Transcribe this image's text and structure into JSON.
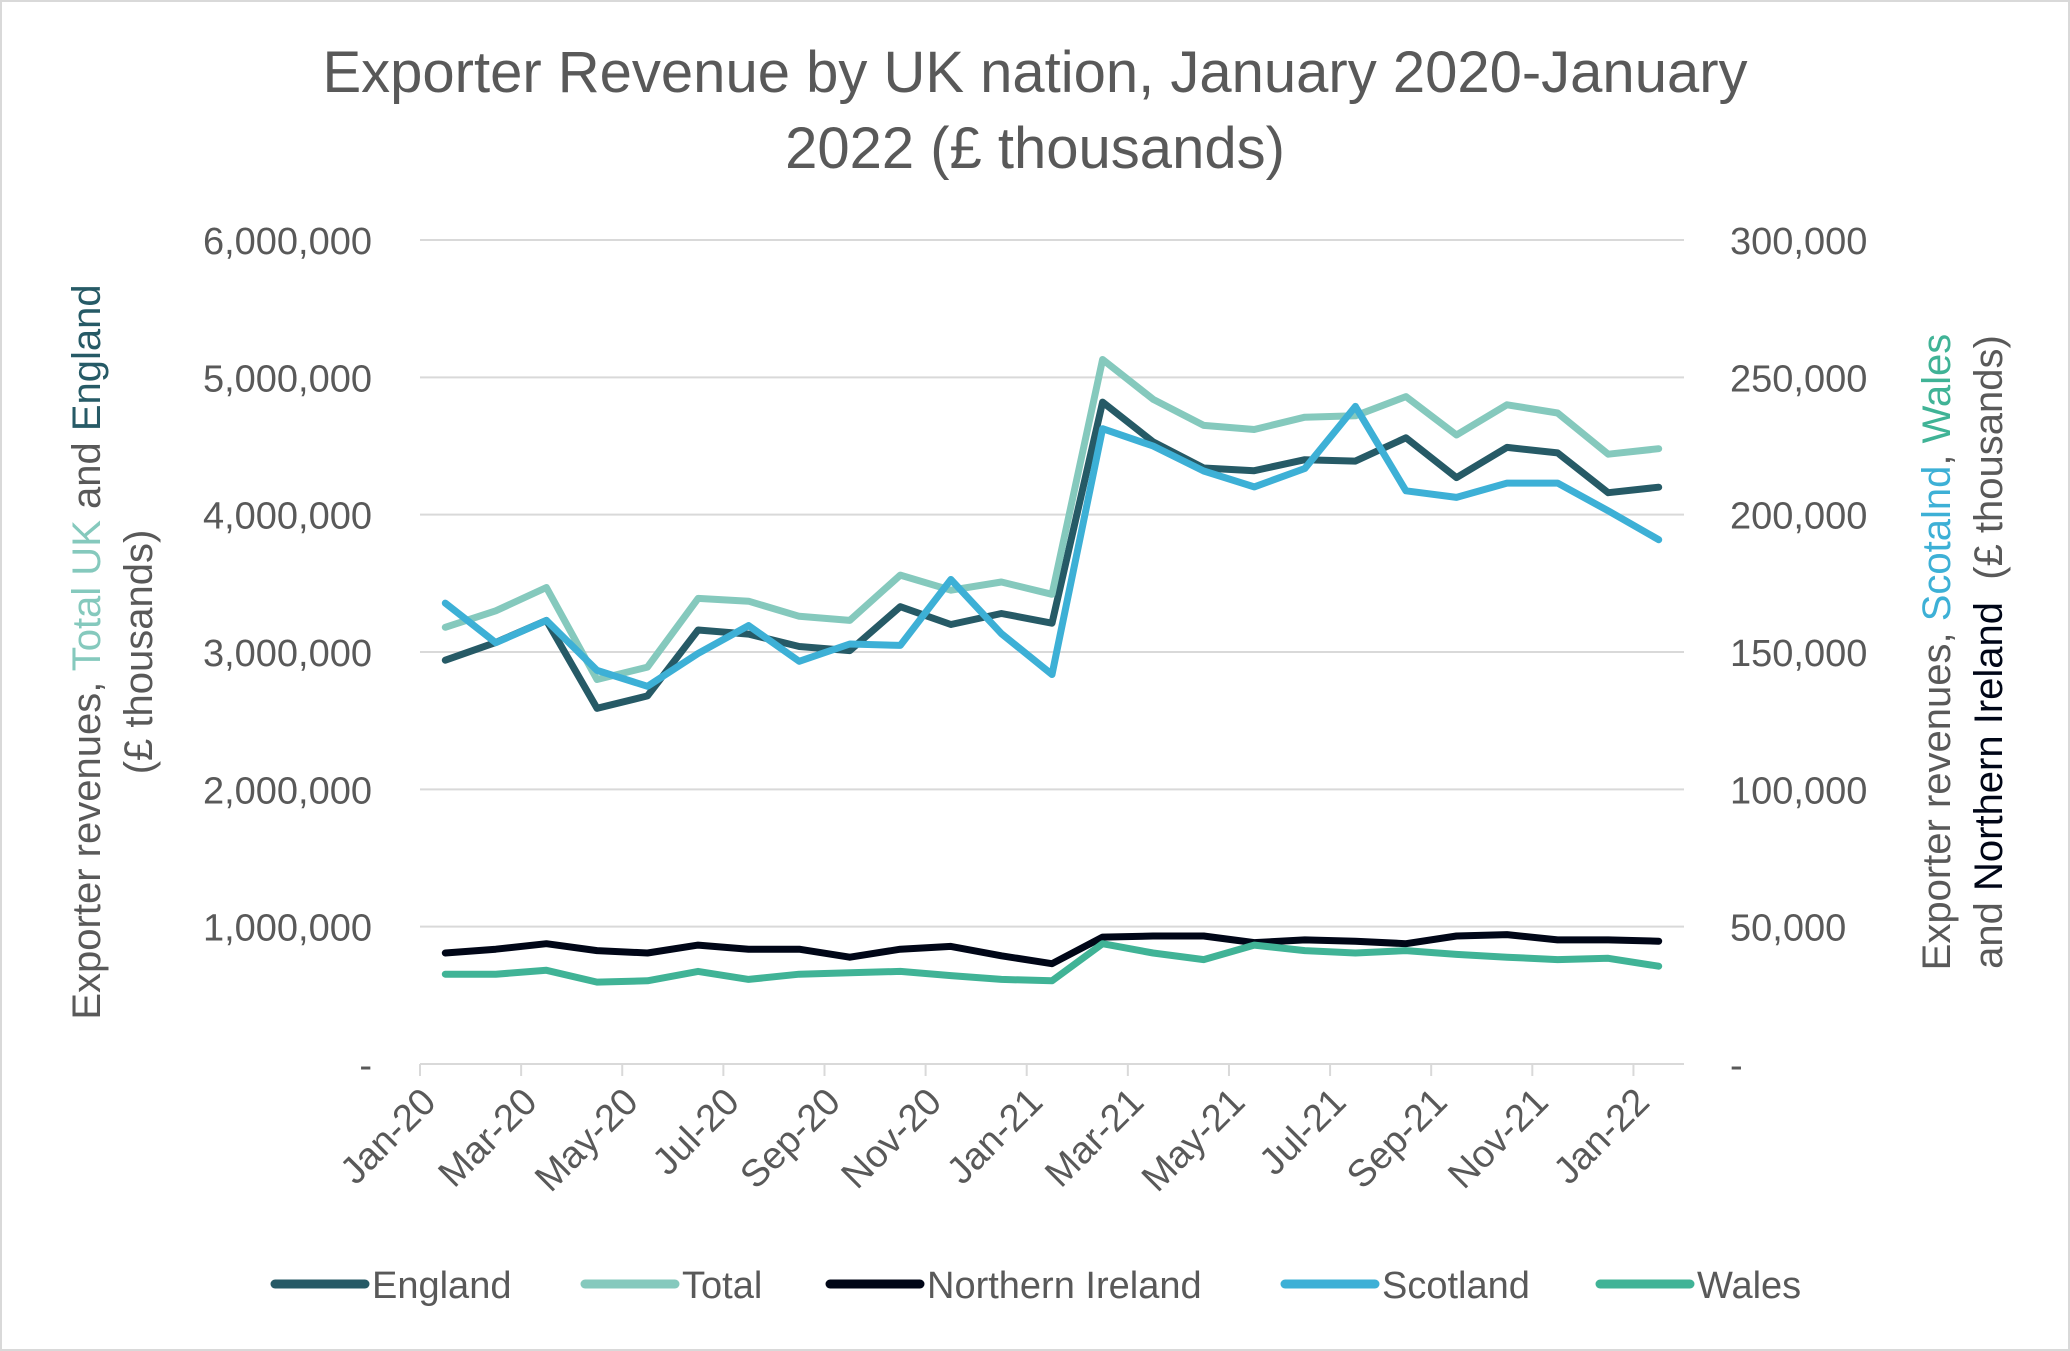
{
  "chart_data": {
    "type": "line",
    "title": "Exporter Revenue by UK nation, January 2020-January 2022 (£ thousands)",
    "title_lines": [
      "Exporter Revenue by UK nation, January 2020-January",
      "2022 (£ thousands)"
    ],
    "ylabel": {
      "prefix": "Exporter revenues, ",
      "total": "Total UK",
      "and": " and ",
      "england": "England",
      "units": "(£ thousands)"
    },
    "y2label": {
      "prefix": "Exporter revenues, ",
      "scotland": "Scotalnd",
      "comma": ", ",
      "wales": "Wales",
      "and": "and ",
      "ni": "Northern Ireland",
      "units": "  (£ thousands)"
    },
    "ylim": [
      0,
      6000000
    ],
    "y2lim": [
      0,
      300000
    ],
    "yticks": [
      "-",
      "1,000,000",
      "2,000,000",
      "3,000,000",
      "4,000,000",
      "5,000,000",
      "6,000,000"
    ],
    "y2ticks": [
      "-",
      "50,000",
      "100,000",
      "150,000",
      "200,000",
      "250,000",
      "300,000"
    ],
    "grid": true,
    "legend_position": "bottom",
    "categories": [
      "Jan-20",
      "Feb-20",
      "Mar-20",
      "Apr-20",
      "May-20",
      "Jun-20",
      "Jul-20",
      "Aug-20",
      "Sep-20",
      "Oct-20",
      "Nov-20",
      "Dec-20",
      "Jan-21",
      "Feb-21",
      "Mar-21",
      "Apr-21",
      "May-21",
      "Jun-21",
      "Jul-21",
      "Aug-21",
      "Sep-21",
      "Oct-21",
      "Nov-21",
      "Dec-21",
      "Jan-22"
    ],
    "xtick_labels": [
      "Jan-20",
      "Mar-20",
      "May-20",
      "Jul-20",
      "Sep-20",
      "Nov-20",
      "Jan-21",
      "Mar-21",
      "May-21",
      "Jul-21",
      "Sep-21",
      "Nov-21",
      "Jan-22"
    ],
    "series": [
      {
        "name": "England",
        "axis": "left",
        "color": "#265A66",
        "values": [
          2940000,
          3070000,
          3230000,
          2590000,
          2680000,
          3160000,
          3130000,
          3040000,
          3010000,
          3330000,
          3200000,
          3280000,
          3210000,
          4820000,
          4530000,
          4340000,
          4320000,
          4400000,
          4390000,
          4560000,
          4270000,
          4490000,
          4450000,
          4160000,
          4200000
        ]
      },
      {
        "name": "Total",
        "axis": "left",
        "color": "#85C9BD",
        "values": [
          3180000,
          3300000,
          3470000,
          2800000,
          2890000,
          3390000,
          3370000,
          3260000,
          3230000,
          3560000,
          3450000,
          3510000,
          3420000,
          5130000,
          4840000,
          4650000,
          4620000,
          4710000,
          4720000,
          4860000,
          4580000,
          4800000,
          4740000,
          4440000,
          4480000
        ]
      },
      {
        "name": "Northern Ireland",
        "axis": "right",
        "color": "#000617",
        "values": [
          40400,
          41800,
          43800,
          41300,
          40400,
          43300,
          41800,
          41800,
          38900,
          41800,
          42800,
          39400,
          36500,
          46200,
          46600,
          46600,
          44200,
          45200,
          44700,
          43800,
          46600,
          47100,
          45200,
          45200,
          44700
        ]
      },
      {
        "name": "Scotland",
        "axis": "right",
        "color": "#3DB0D6",
        "values": [
          167800,
          153400,
          161500,
          143300,
          137500,
          149500,
          159600,
          146600,
          152900,
          152400,
          176400,
          156700,
          141800,
          231300,
          225000,
          215900,
          210100,
          216800,
          239400,
          208700,
          206300,
          211500,
          211500,
          201400,
          190900
        ]
      },
      {
        "name": "Wales",
        "axis": "right",
        "color": "#40B396",
        "values": [
          32700,
          32700,
          34100,
          29800,
          30300,
          33700,
          30800,
          32700,
          33200,
          33700,
          32200,
          30800,
          30300,
          43800,
          40400,
          38000,
          43300,
          41300,
          40400,
          41300,
          39900,
          38900,
          38000,
          38500,
          35600
        ]
      }
    ],
    "axis_text_color": "#595959",
    "grid_color": "#d9d9d9"
  }
}
